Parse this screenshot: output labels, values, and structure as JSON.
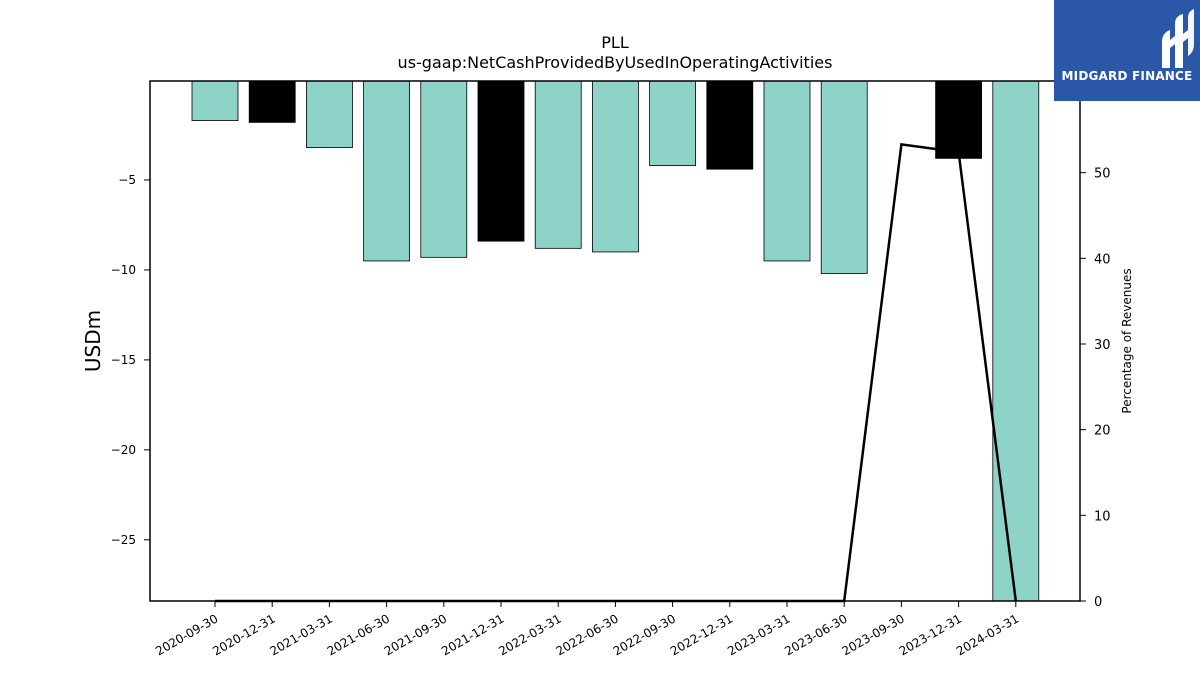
{
  "chart_data": {
    "type": "bar",
    "title": "PLL",
    "subtitle": "us-gaap:NetCashProvidedByUsedInOperatingActivities",
    "ylabel": "USDm",
    "y2label": "Percentage of Revenues",
    "ylim": [
      -28.4,
      0.5
    ],
    "y2lim": [
      0,
      60.7
    ],
    "yticks": [
      -5,
      -10,
      -15,
      -20,
      -25
    ],
    "y2ticks": [
      0,
      10,
      20,
      30,
      40,
      50,
      60
    ],
    "categories": [
      "2020-09-30",
      "2020-12-31",
      "2021-03-31",
      "2021-06-30",
      "2021-09-30",
      "2021-12-31",
      "2022-03-31",
      "2022-06-30",
      "2022-09-30",
      "2022-12-31",
      "2023-03-31",
      "2023-06-30",
      "2023-09-30",
      "2023-12-31",
      "2024-03-31"
    ],
    "series": [
      {
        "type": "bar",
        "values": [
          -1.7,
          -1.8,
          -3.2,
          -9.5,
          -9.3,
          -8.4,
          -8.8,
          -9.0,
          -4.2,
          -4.4,
          -9.5,
          -10.2,
          null,
          -3.8,
          -28.4
        ],
        "colors": [
          "#8dd3c7",
          "#000000",
          "#8dd3c7",
          "#8dd3c7",
          "#8dd3c7",
          "#000000",
          "#8dd3c7",
          "#8dd3c7",
          "#8dd3c7",
          "#000000",
          "#8dd3c7",
          "#8dd3c7",
          "#8dd3c7",
          "#000000",
          "#8dd3c7"
        ]
      },
      {
        "type": "line",
        "axis": "right",
        "color": "#000000",
        "values": [
          0,
          0,
          0,
          0,
          0,
          0,
          0,
          0,
          0,
          0,
          0,
          0,
          53.3,
          52.4,
          0
        ]
      }
    ],
    "grid": false,
    "legend": "none"
  },
  "logo": {
    "text": "MIDGARD FINANCE",
    "background": "#2b57a8"
  }
}
